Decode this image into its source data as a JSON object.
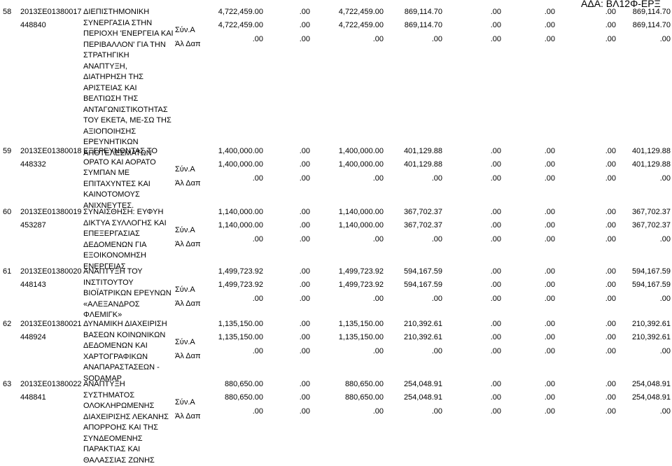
{
  "header": "ΑΔΑ: ΒΛ12Φ-ΕΡΞ",
  "row_labels": [
    "Σύν.Α",
    "Άλ Δαπ"
  ],
  "rows": [
    {
      "num": "58",
      "code": "2013ΣΕ01380017",
      "sub": "448840",
      "title": [
        "ΔΙΕΠΙΣΤΗΜΟΝΙΚΗ",
        "ΣΥΝΕΡΓΑΣΙΑ ΣΤΗΝ",
        "ΠΕΡΙΟΧΗ 'ΕΝΕΡΓΕΙΑ ΚΑΙ",
        "ΠΕΡΙΒΑΛΛΟΝ' ΓΙΑ ΤΗΝ",
        "ΣΤΡΑΤΗΓΙΚΗ",
        "ΑΝΑΠΤΥΞΗ,",
        "ΔΙΑΤΗΡΗΣΗ ΤΗΣ",
        "ΑΡΙΣΤΕΙΑΣ ΚΑΙ",
        "ΒΕΛΤΙΩΣΗ ΤΗΣ",
        "ΑΝΤΑΓΩΝΙΣΤΙΚΟΤΗΤΑΣ",
        "ΤΟΥ ΕΚΕΤΑ, ΜΕ-ΣΩ ΤΗΣ",
        "ΑΞΙΟΠΟΙΗΣΗΣ",
        "ΕΡΕΥΝΗΤΙΚΩΝ",
        "ΑΠΟΤΕΛΕΣΜΑΤΩΝ"
      ],
      "lines": [
        [
          "4,722,459.00",
          ".00",
          "4,722,459.00",
          "869,114.70",
          ".00",
          ".00",
          ".00",
          "869,114.70"
        ],
        [
          "4,722,459.00",
          ".00",
          "4,722,459.00",
          "869,114.70",
          ".00",
          ".00",
          ".00",
          "869,114.70"
        ],
        [
          ".00",
          ".00",
          ".00",
          ".00",
          ".00",
          ".00",
          ".00",
          ".00"
        ]
      ]
    },
    {
      "num": "59",
      "code": "2013ΣΕ01380018",
      "sub": "448332",
      "title": [
        "ΕΞΕΡΕΥΝΩΝΤΑΣ ΤΟ",
        "ΟΡΑΤΟ ΚΑΙ ΑΟΡΑΤΟ",
        "ΣΥΜΠΑΝ ΜΕ",
        "ΕΠΙΤΑΧΥΝΤΕΣ ΚΑΙ",
        "ΚΑΙΝΟΤΟΜΟΥΣ",
        "ΑΝΙΧΝΕΥΤΕΣ."
      ],
      "lines": [
        [
          "1,400,000.00",
          ".00",
          "1,400,000.00",
          "401,129.88",
          ".00",
          ".00",
          ".00",
          "401,129.88"
        ],
        [
          "1,400,000.00",
          ".00",
          "1,400,000.00",
          "401,129.88",
          ".00",
          ".00",
          ".00",
          "401,129.88"
        ],
        [
          ".00",
          ".00",
          ".00",
          ".00",
          ".00",
          ".00",
          ".00",
          ".00"
        ]
      ]
    },
    {
      "num": "60",
      "code": "2013ΣΕ01380019",
      "sub": "453287",
      "title": [
        "ΣΥΝΑΙΣΘΗΣΗ: ΕΥΦΥΗ",
        "ΔΙΚΤΥΑ ΣΥΛΛΟΓΗΣ ΚΑΙ",
        "ΕΠΕΞΕΡΓΑΣΙΑΣ",
        "ΔΕΔΟΜΕΝΩΝ ΓΙΑ",
        "ΕΞΟΙΚΟΝΟΜΗΣΗ",
        "ΕΝΕΡΓΕΙΑΣ"
      ],
      "lines": [
        [
          "1,140,000.00",
          ".00",
          "1,140,000.00",
          "367,702.37",
          ".00",
          ".00",
          ".00",
          "367,702.37"
        ],
        [
          "1,140,000.00",
          ".00",
          "1,140,000.00",
          "367,702.37",
          ".00",
          ".00",
          ".00",
          "367,702.37"
        ],
        [
          ".00",
          ".00",
          ".00",
          ".00",
          ".00",
          ".00",
          ".00",
          ".00"
        ]
      ]
    },
    {
      "num": "61",
      "code": "2013ΣΕ01380020",
      "sub": "448143",
      "title": [
        "ΑΝΑΠΤΥΞΗ ΤΟΥ",
        "ΙΝΣΤΙΤΟΥΤΟΥ",
        "ΒΙΟΪΑΤΡΙΚΩΝ ΕΡΕΥΝΩΝ",
        "«ΑΛΕΞΑΝΔΡΟΣ",
        "ΦΛΕΜΙΓΚ»"
      ],
      "lines": [
        [
          "1,499,723.92",
          ".00",
          "1,499,723.92",
          "594,167.59",
          ".00",
          ".00",
          ".00",
          "594,167.59"
        ],
        [
          "1,499,723.92",
          ".00",
          "1,499,723.92",
          "594,167.59",
          ".00",
          ".00",
          ".00",
          "594,167.59"
        ],
        [
          ".00",
          ".00",
          ".00",
          ".00",
          ".00",
          ".00",
          ".00",
          ".00"
        ]
      ]
    },
    {
      "num": "62",
      "code": "2013ΣΕ01380021",
      "sub": "448924",
      "title": [
        "ΔΥΝΑΜΙΚΗ ΔΙΑΧΕΙΡΙΣΗ",
        "ΒΑΣΕΩΝ ΚΟΙΝΩΝΙΚΩΝ",
        "ΔΕΔΟΜΕΝΩΝ ΚΑΙ",
        "ΧΑΡΤΟΓΡΑΦΙΚΩΝ",
        "ΑΝΑΠΑΡΑΣΤΑΣΕΩΝ -",
        "SODAMAP"
      ],
      "lines": [
        [
          "1,135,150.00",
          ".00",
          "1,135,150.00",
          "210,392.61",
          ".00",
          ".00",
          ".00",
          "210,392.61"
        ],
        [
          "1,135,150.00",
          ".00",
          "1,135,150.00",
          "210,392.61",
          ".00",
          ".00",
          ".00",
          "210,392.61"
        ],
        [
          ".00",
          ".00",
          ".00",
          ".00",
          ".00",
          ".00",
          ".00",
          ".00"
        ]
      ]
    },
    {
      "num": "63",
      "code": "2013ΣΕ01380022",
      "sub": "448841",
      "title": [
        "ΑΝΑΠΤΥΞΗ",
        "ΣΥΣΤΗΜΑΤΟΣ",
        "ΟΛΟΚΛΗΡΩΜΕΝΗΣ",
        "ΔΙΑΧΕΙΡΙΣΗΣ ΛΕΚΑΝΗΣ",
        "ΑΠΟΡΡΟΗΣ ΚΑΙ ΤΗΣ",
        "ΣΥΝΔΕΟΜΕΝΗΣ",
        "ΠΑΡΑΚΤΙΑΣ ΚΑΙ",
        "ΘΑΛΑΣΣΙΑΣ ΖΩΝΗΣ"
      ],
      "lines": [
        [
          "880,650.00",
          ".00",
          "880,650.00",
          "254,048.91",
          ".00",
          ".00",
          ".00",
          "254,048.91"
        ],
        [
          "880,650.00",
          ".00",
          "880,650.00",
          "254,048.91",
          ".00",
          ".00",
          ".00",
          "254,048.91"
        ],
        [
          ".00",
          ".00",
          ".00",
          ".00",
          ".00",
          ".00",
          ".00",
          ".00"
        ]
      ]
    }
  ]
}
